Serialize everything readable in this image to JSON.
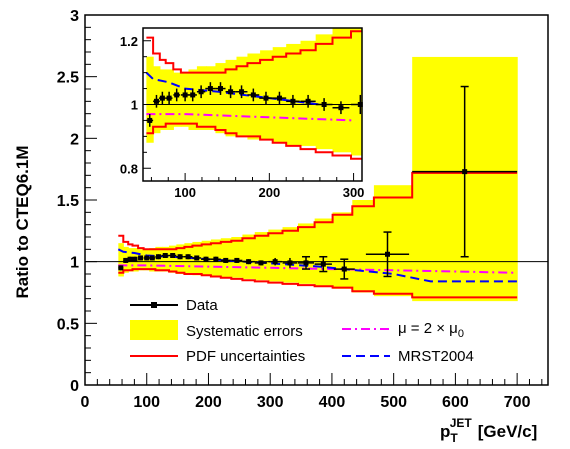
{
  "chart_data": {
    "type": "line",
    "xlabel_main": "p",
    "xlabel_sub": "T",
    "xlabel_sup": "JET",
    "xlabel_unit": "[GeV/c]",
    "ylabel": "Ratio to CTEQ6.1M",
    "xlim": [
      0,
      750
    ],
    "ylim": [
      0,
      3
    ],
    "x_ticks": [
      0,
      100,
      200,
      300,
      400,
      500,
      600,
      700
    ],
    "y_ticks": [
      0,
      0.5,
      1,
      1.5,
      2,
      2.5,
      3
    ],
    "x_tick_labels": [
      "0",
      "100",
      "200",
      "300",
      "400",
      "500",
      "600",
      "700"
    ],
    "y_tick_labels": [
      "0",
      "0.5",
      "1",
      "1.5",
      "2",
      "2.5",
      "3"
    ],
    "reference_line": 1,
    "bin_edges": [
      54,
      62,
      70,
      77,
      86,
      95,
      104,
      114,
      125,
      136,
      148,
      161,
      174,
      189,
      204,
      220,
      237,
      255,
      275,
      297,
      320,
      345,
      372,
      401,
      433,
      468,
      530,
      700
    ],
    "series": [
      {
        "name": "Data",
        "color": "#000000",
        "points": [
          {
            "x": 58,
            "y": 0.95,
            "xerr": 4,
            "yerr": 0.02
          },
          {
            "x": 66,
            "y": 1.01,
            "xerr": 4,
            "yerr": 0.02
          },
          {
            "x": 73,
            "y": 1.02,
            "xerr": 4,
            "yerr": 0.02
          },
          {
            "x": 81,
            "y": 1.02,
            "xerr": 4,
            "yerr": 0.02
          },
          {
            "x": 90,
            "y": 1.03,
            "xerr": 4,
            "yerr": 0.02
          },
          {
            "x": 100,
            "y": 1.03,
            "xerr": 5,
            "yerr": 0.02
          },
          {
            "x": 109,
            "y": 1.03,
            "xerr": 5,
            "yerr": 0.02
          },
          {
            "x": 119,
            "y": 1.04,
            "xerr": 5,
            "yerr": 0.02
          },
          {
            "x": 130,
            "y": 1.05,
            "xerr": 6,
            "yerr": 0.02
          },
          {
            "x": 142,
            "y": 1.05,
            "xerr": 6,
            "yerr": 0.02
          },
          {
            "x": 154,
            "y": 1.04,
            "xerr": 6,
            "yerr": 0.02
          },
          {
            "x": 167,
            "y": 1.04,
            "xerr": 7,
            "yerr": 0.02
          },
          {
            "x": 181,
            "y": 1.03,
            "xerr": 7,
            "yerr": 0.02
          },
          {
            "x": 196,
            "y": 1.02,
            "xerr": 8,
            "yerr": 0.02
          },
          {
            "x": 212,
            "y": 1.02,
            "xerr": 8,
            "yerr": 0.02
          },
          {
            "x": 228,
            "y": 1.01,
            "xerr": 8,
            "yerr": 0.02
          },
          {
            "x": 246,
            "y": 1.01,
            "xerr": 9,
            "yerr": 0.02
          },
          {
            "x": 265,
            "y": 1.0,
            "xerr": 10,
            "yerr": 0.02
          },
          {
            "x": 285,
            "y": 0.99,
            "xerr": 10,
            "yerr": 0.02
          },
          {
            "x": 308,
            "y": 1.0,
            "xerr": 11,
            "yerr": 0.03
          },
          {
            "x": 332,
            "y": 0.99,
            "xerr": 12,
            "yerr": 0.04
          },
          {
            "x": 358,
            "y": 0.99,
            "xerr": 13,
            "yerr": 0.05
          },
          {
            "x": 386,
            "y": 0.98,
            "xerr": 14,
            "yerr": 0.06
          },
          {
            "x": 420,
            "y": 0.94,
            "xerr": 17,
            "yerr": 0.08
          },
          {
            "x": 490,
            "y": 1.06,
            "xerr": 35,
            "yerr": 0.18
          },
          {
            "x": 615,
            "y": 1.73,
            "xerr": 85,
            "yerr": 0.69
          }
        ]
      },
      {
        "name": "Systematic errors",
        "color": "#ffff00",
        "lower": [
          0.88,
          0.91,
          0.92,
          0.92,
          0.93,
          0.93,
          0.92,
          0.92,
          0.92,
          0.91,
          0.9,
          0.9,
          0.89,
          0.89,
          0.88,
          0.87,
          0.87,
          0.86,
          0.85,
          0.84,
          0.83,
          0.82,
          0.8,
          0.78,
          0.75,
          0.72,
          0.68
        ],
        "upper": [
          1.15,
          1.12,
          1.11,
          1.11,
          1.1,
          1.1,
          1.11,
          1.12,
          1.12,
          1.13,
          1.14,
          1.15,
          1.16,
          1.17,
          1.18,
          1.19,
          1.2,
          1.22,
          1.24,
          1.26,
          1.28,
          1.31,
          1.35,
          1.4,
          1.5,
          1.62,
          2.66
        ]
      },
      {
        "name": "PDF uncertainties",
        "color": "#ff0000",
        "lower": [
          0.91,
          0.93,
          0.93,
          0.94,
          0.94,
          0.94,
          0.94,
          0.93,
          0.93,
          0.92,
          0.91,
          0.9,
          0.9,
          0.89,
          0.88,
          0.87,
          0.86,
          0.85,
          0.84,
          0.83,
          0.82,
          0.81,
          0.8,
          0.79,
          0.76,
          0.74,
          0.71
        ],
        "upper": [
          1.21,
          1.16,
          1.14,
          1.13,
          1.11,
          1.1,
          1.1,
          1.1,
          1.1,
          1.1,
          1.11,
          1.12,
          1.13,
          1.14,
          1.15,
          1.16,
          1.17,
          1.19,
          1.21,
          1.23,
          1.25,
          1.28,
          1.32,
          1.38,
          1.45,
          1.52,
          1.72
        ]
      },
      {
        "name_prefix": "μ = 2 × μ",
        "name_sub": "0",
        "color": "#ff00ff",
        "x": [
          54,
          100,
          200,
          300,
          400,
          500,
          600,
          700
        ],
        "y": [
          0.97,
          0.97,
          0.96,
          0.95,
          0.94,
          0.93,
          0.92,
          0.91
        ]
      },
      {
        "name": "MRST2004",
        "color": "#0000ff",
        "x": [
          54,
          62,
          80,
          100,
          140,
          200,
          260,
          320,
          380,
          420,
          460,
          500,
          530,
          560,
          700
        ],
        "y": [
          1.1,
          1.08,
          1.07,
          1.05,
          1.04,
          1.02,
          1.0,
          0.98,
          0.96,
          0.94,
          0.92,
          0.9,
          0.87,
          0.84,
          0.84
        ]
      }
    ],
    "inset": {
      "xlim": [
        50,
        310
      ],
      "ylim": [
        0.76,
        1.24
      ],
      "x_ticks": [
        100,
        200,
        300
      ],
      "y_ticks": [
        0.8,
        1,
        1.2
      ],
      "x_tick_labels": [
        "100",
        "200",
        "300"
      ],
      "y_tick_labels": [
        "0.8",
        "1",
        "1.2"
      ]
    },
    "legend": {
      "data": "Data",
      "syst": "Systematic errors",
      "pdf": "PDF uncertainties",
      "mu_prefix": "μ = 2 × μ",
      "mu_sub": "0",
      "mrst": "MRST2004"
    }
  }
}
